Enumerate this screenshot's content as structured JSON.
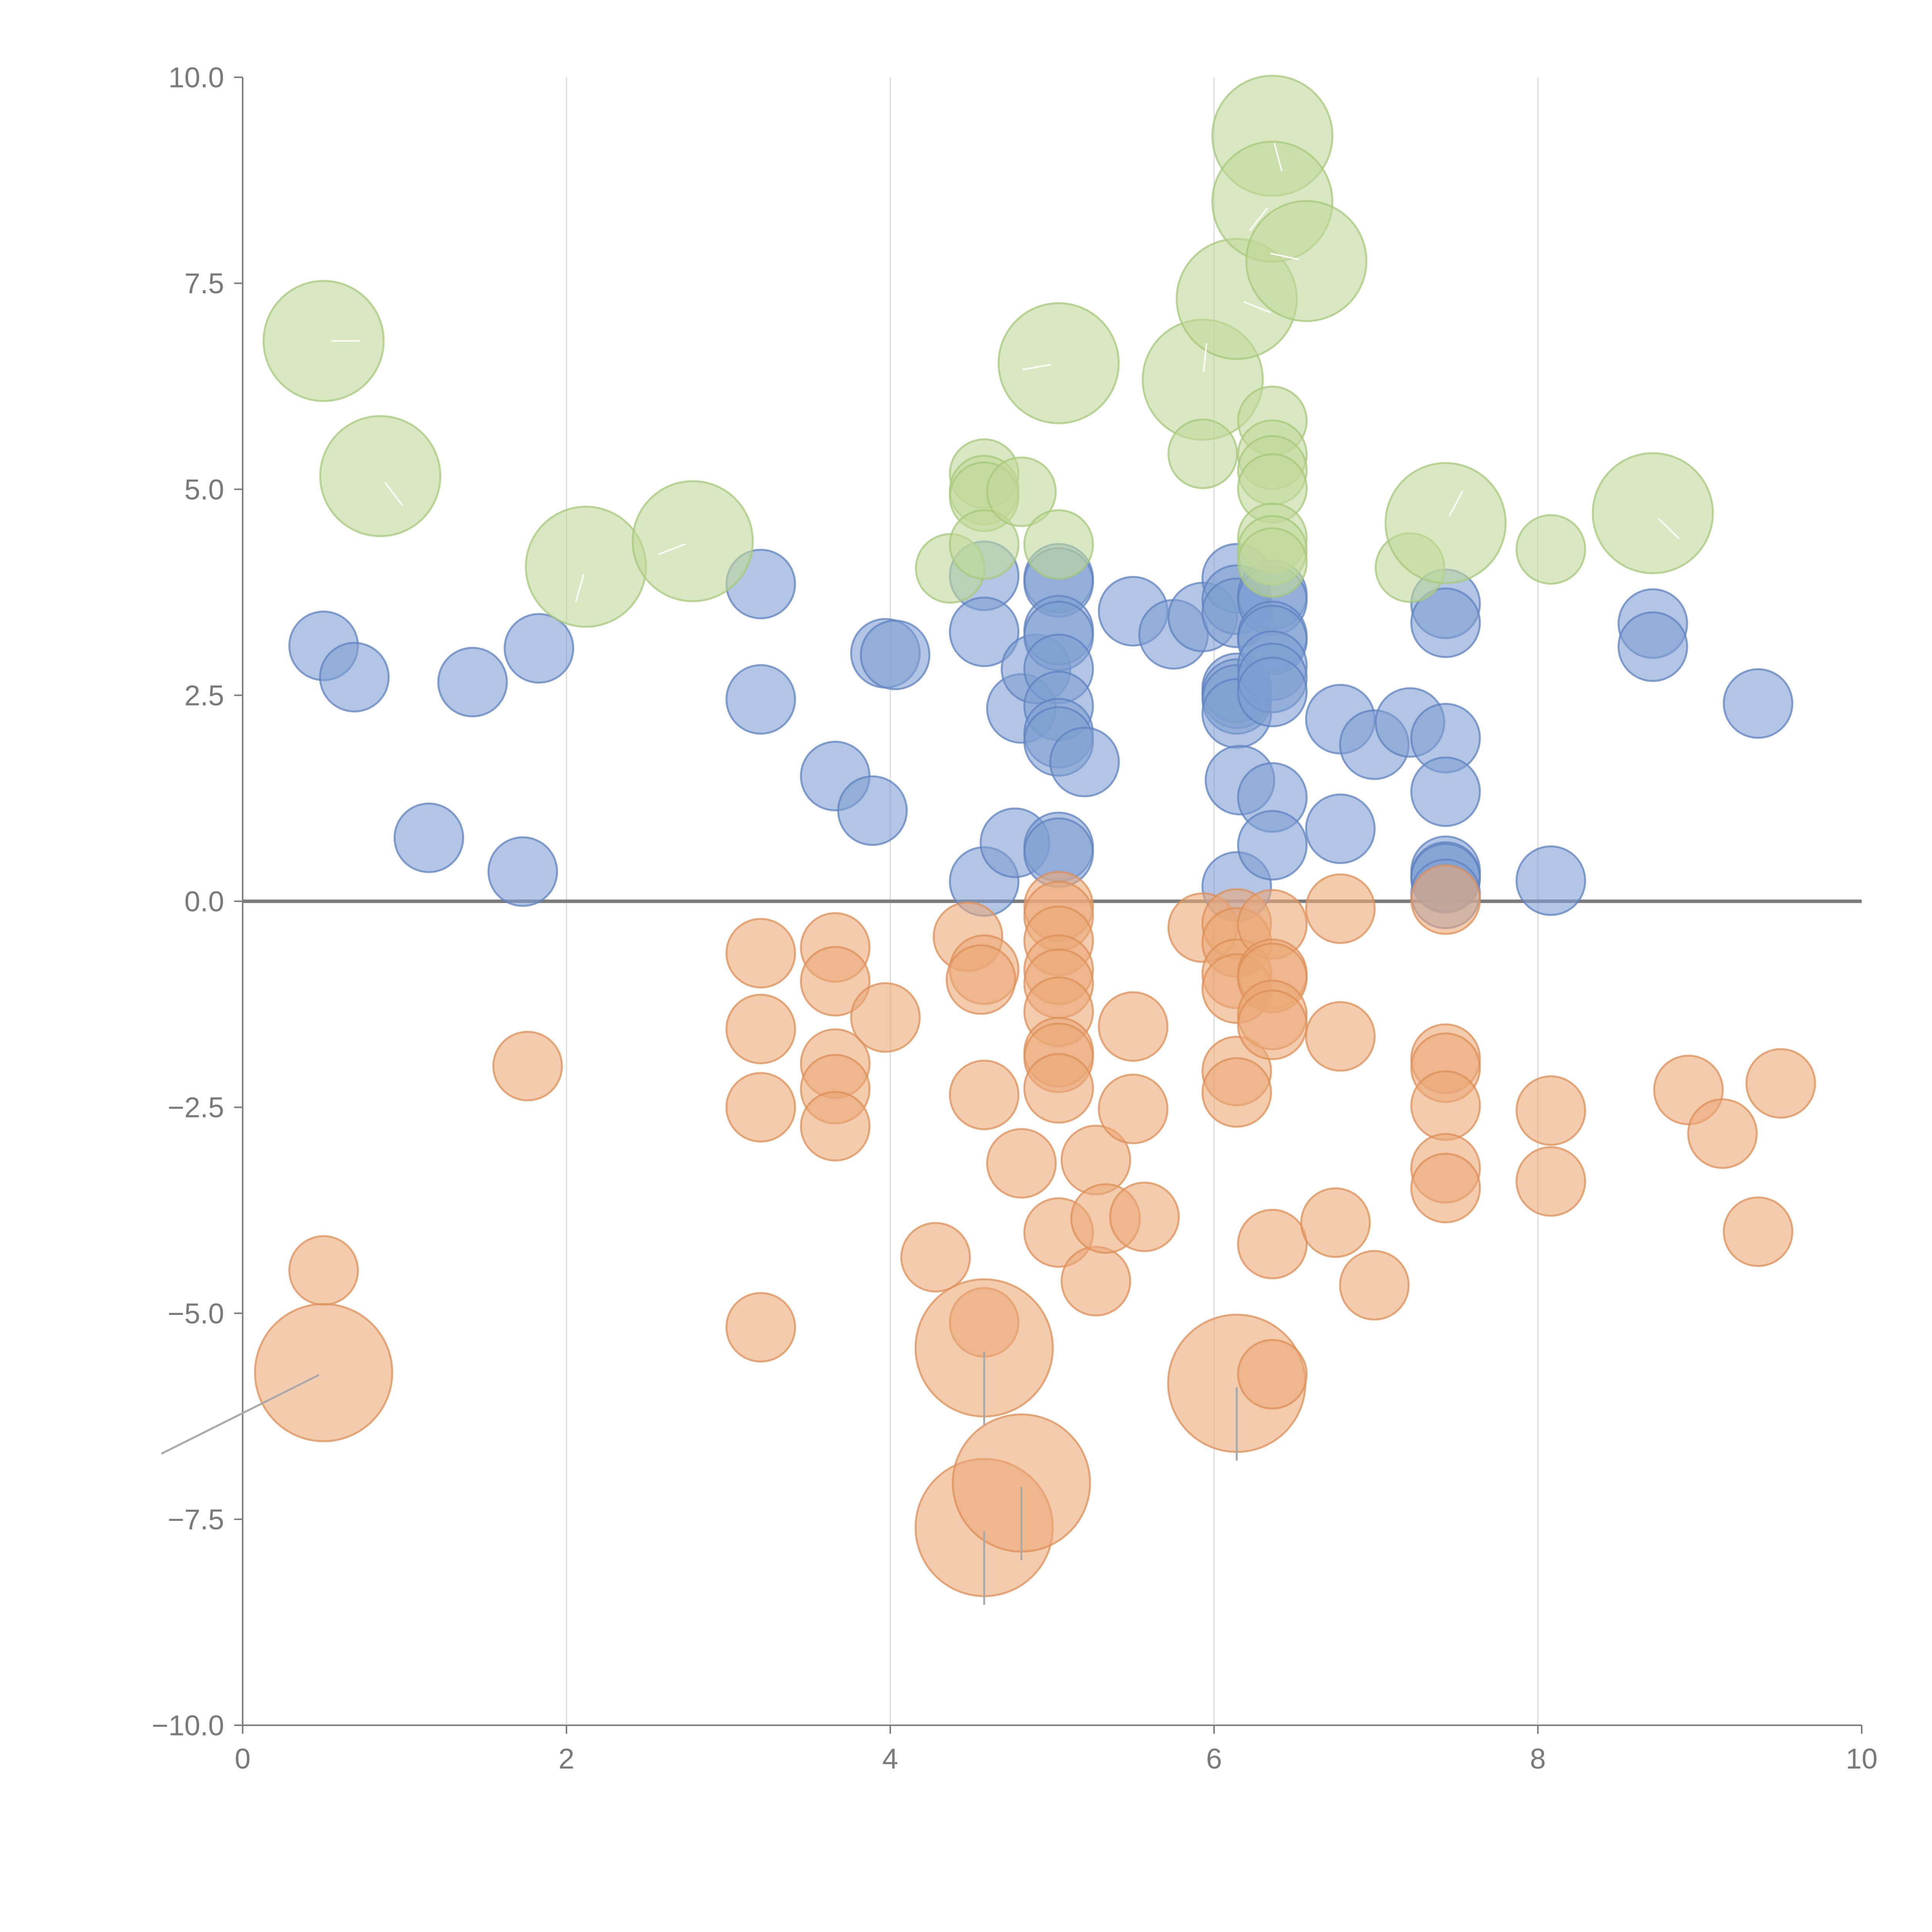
{
  "chart_data": {
    "type": "scatter",
    "subtype": "bubble",
    "title": "",
    "xlabel": "",
    "ylabel": "",
    "xlim": [
      0,
      10
    ],
    "ylim": [
      -10,
      10
    ],
    "x_ticks": [
      0,
      2,
      4,
      6,
      8,
      10
    ],
    "y_ticks": [
      -10,
      -7.5,
      -5,
      -2.5,
      0,
      2.5,
      5,
      7.5,
      10
    ],
    "x_tick_labels": [
      "0",
      "2",
      "4",
      "6",
      "8",
      "10"
    ],
    "y_tick_labels": [
      "−10.0",
      "−7.5",
      "−5.0",
      "−2.5",
      "0.0",
      "2.5",
      "5.0",
      "7.5",
      "10.0"
    ],
    "grid": "vertical",
    "zero_line": true,
    "series": [
      {
        "name": "blue",
        "color": "#7f9fd2",
        "stroke": "#5f82c0",
        "points": [
          [
            0.5,
            3.1
          ],
          [
            0.69,
            2.72
          ],
          [
            1.15,
            0.77
          ],
          [
            1.42,
            2.66
          ],
          [
            1.73,
            0.36
          ],
          [
            1.83,
            3.07
          ],
          [
            3.2,
            3.85
          ],
          [
            3.2,
            2.45
          ],
          [
            3.66,
            1.52
          ],
          [
            3.89,
            1.1
          ],
          [
            3.97,
            3.01
          ],
          [
            4.03,
            2.99
          ],
          [
            4.58,
            3.95
          ],
          [
            4.58,
            3.27
          ],
          [
            4.58,
            0.24
          ],
          [
            4.77,
            0.71
          ],
          [
            4.81,
            2.34
          ],
          [
            4.9,
            2.82
          ],
          [
            5.04,
            3.92
          ],
          [
            5.04,
            3.87
          ],
          [
            5.04,
            3.29
          ],
          [
            5.04,
            3.22
          ],
          [
            5.04,
            2.82
          ],
          [
            5.04,
            2.37
          ],
          [
            5.04,
            2.04
          ],
          [
            5.04,
            1.94
          ],
          [
            5.04,
            0.66
          ],
          [
            5.04,
            0.59
          ],
          [
            5.2,
            1.69
          ],
          [
            5.5,
            3.52
          ],
          [
            5.75,
            3.24
          ],
          [
            5.93,
            3.45
          ],
          [
            6.14,
            3.92
          ],
          [
            6.14,
            3.66
          ],
          [
            6.14,
            3.5
          ],
          [
            6.14,
            2.59
          ],
          [
            6.14,
            2.52
          ],
          [
            6.14,
            2.45
          ],
          [
            6.14,
            2.28
          ],
          [
            6.16,
            1.47
          ],
          [
            6.14,
            0.18
          ],
          [
            6.36,
            3.72
          ],
          [
            6.36,
            3.65
          ],
          [
            6.36,
            3.22
          ],
          [
            6.36,
            3.17
          ],
          [
            6.36,
            2.86
          ],
          [
            6.36,
            2.71
          ],
          [
            6.36,
            2.54
          ],
          [
            6.36,
            1.26
          ],
          [
            6.36,
            0.68
          ],
          [
            6.78,
            2.21
          ],
          [
            6.78,
            0.88
          ],
          [
            6.99,
            1.9
          ],
          [
            7.21,
            2.17
          ],
          [
            7.43,
            3.61
          ],
          [
            7.43,
            3.38
          ],
          [
            7.43,
            1.98
          ],
          [
            7.43,
            1.33
          ],
          [
            7.43,
            0.37
          ],
          [
            7.43,
            0.3
          ],
          [
            7.43,
            0.28
          ],
          [
            7.43,
            0.09
          ],
          [
            8.08,
            0.25
          ],
          [
            8.71,
            3.37
          ],
          [
            8.71,
            3.09
          ],
          [
            9.36,
            2.4
          ]
        ],
        "sizes": [
          24,
          24,
          24,
          24,
          24,
          24,
          24,
          24,
          24,
          24,
          24,
          24,
          24,
          24,
          24,
          24,
          24,
          24,
          24,
          24,
          24,
          24,
          24,
          24,
          24,
          24,
          24,
          24,
          24,
          24,
          24,
          24,
          24,
          24,
          24,
          24,
          24,
          24,
          24,
          24,
          24,
          24,
          24,
          24,
          24,
          24,
          24,
          24,
          24,
          24,
          24,
          24,
          24,
          24,
          24,
          24,
          24,
          24,
          24,
          24,
          24,
          24,
          24,
          24,
          24,
          24
        ]
      },
      {
        "name": "orange",
        "color": "#eba877",
        "stroke": "#dd8f57",
        "points": [
          [
            0.5,
            -4.48
          ],
          [
            0.5,
            -5.72
          ],
          [
            1.76,
            -2
          ],
          [
            3.2,
            -0.63
          ],
          [
            3.2,
            -1.55
          ],
          [
            3.2,
            -2.5
          ],
          [
            3.2,
            -5.17
          ],
          [
            3.66,
            -0.56
          ],
          [
            3.66,
            -0.97
          ],
          [
            3.66,
            -1.97
          ],
          [
            3.66,
            -2.28
          ],
          [
            3.66,
            -2.73
          ],
          [
            3.97,
            -1.41
          ],
          [
            4.28,
            -4.32
          ],
          [
            4.48,
            -0.43
          ],
          [
            4.58,
            -0.83
          ],
          [
            4.56,
            -0.95
          ],
          [
            4.58,
            -2.35
          ],
          [
            4.58,
            -5.11
          ],
          [
            4.58,
            -5.42
          ],
          [
            4.58,
            -7.6
          ],
          [
            4.81,
            -3.18
          ],
          [
            4.81,
            -7.06
          ],
          [
            5.04,
            -0.06
          ],
          [
            5.04,
            -0.18
          ],
          [
            5.04,
            -0.48
          ],
          [
            5.04,
            -0.83
          ],
          [
            5.04,
            -1
          ],
          [
            5.04,
            -1.34
          ],
          [
            5.04,
            -1.83
          ],
          [
            5.04,
            -1.9
          ],
          [
            5.04,
            -2.27
          ],
          [
            5.04,
            -4.02
          ],
          [
            5.27,
            -3.14
          ],
          [
            5.27,
            -4.61
          ],
          [
            5.33,
            -3.85
          ],
          [
            5.5,
            -1.52
          ],
          [
            5.5,
            -2.52
          ],
          [
            5.57,
            -3.83
          ],
          [
            5.93,
            -0.32
          ],
          [
            6.14,
            -0.27
          ],
          [
            6.14,
            -0.5
          ],
          [
            6.14,
            -0.88
          ],
          [
            6.14,
            -1.06
          ],
          [
            6.14,
            -2.06
          ],
          [
            6.14,
            -2.32
          ],
          [
            6.14,
            -5.85
          ],
          [
            6.36,
            -0.28
          ],
          [
            6.36,
            -0.88
          ],
          [
            6.36,
            -0.93
          ],
          [
            6.36,
            -1.38
          ],
          [
            6.36,
            -1.5
          ],
          [
            6.36,
            -4.16
          ],
          [
            6.36,
            -5.74
          ],
          [
            6.78,
            -0.09
          ],
          [
            6.78,
            -1.64
          ],
          [
            6.75,
            -3.9
          ],
          [
            6.99,
            -4.66
          ],
          [
            7.43,
            0.02
          ],
          [
            7.43,
            -1.91
          ],
          [
            7.43,
            -2.02
          ],
          [
            7.43,
            -2.48
          ],
          [
            7.43,
            -3.24
          ],
          [
            7.43,
            -3.48
          ],
          [
            8.08,
            -2.54
          ],
          [
            8.08,
            -3.4
          ],
          [
            8.93,
            -2.29
          ],
          [
            9.14,
            -2.82
          ],
          [
            9.36,
            -4.01
          ],
          [
            9.5,
            -2.21
          ]
        ],
        "sizes": [
          24,
          48,
          24,
          24,
          24,
          24,
          24,
          24,
          24,
          24,
          24,
          24,
          24,
          24,
          24,
          24,
          24,
          24,
          24,
          48,
          48,
          24,
          48,
          24,
          24,
          24,
          24,
          24,
          24,
          24,
          24,
          24,
          24,
          24,
          24,
          24,
          24,
          24,
          24,
          24,
          24,
          24,
          24,
          24,
          24,
          24,
          48,
          24,
          24,
          24,
          24,
          24,
          24,
          24,
          24,
          24,
          24,
          24,
          24,
          24,
          24,
          24,
          24,
          24,
          24,
          24,
          24,
          24,
          24,
          24
        ]
      },
      {
        "name": "green",
        "color": "#bfd89a",
        "stroke": "#a6c87a",
        "points": [
          [
            0.5,
            6.8
          ],
          [
            0.85,
            5.16
          ],
          [
            2.12,
            4.06
          ],
          [
            2.78,
            4.37
          ],
          [
            4.37,
            4.04
          ],
          [
            4.58,
            5.19
          ],
          [
            4.58,
            4.99
          ],
          [
            4.58,
            4.91
          ],
          [
            4.58,
            4.33
          ],
          [
            4.81,
            4.97
          ],
          [
            5.04,
            6.53
          ],
          [
            5.04,
            4.33
          ],
          [
            5.93,
            6.33
          ],
          [
            5.93,
            5.43
          ],
          [
            6.14,
            7.31
          ],
          [
            6.36,
            9.29
          ],
          [
            6.36,
            8.49
          ],
          [
            6.36,
            5.83
          ],
          [
            6.36,
            5.42
          ],
          [
            6.36,
            5.23
          ],
          [
            6.36,
            5.01
          ],
          [
            6.36,
            4.41
          ],
          [
            6.36,
            4.26
          ],
          [
            6.36,
            4.11
          ],
          [
            6.57,
            7.77
          ],
          [
            7.21,
            4.05
          ],
          [
            7.43,
            4.59
          ],
          [
            8.08,
            4.27
          ],
          [
            8.71,
            4.71
          ]
        ],
        "sizes": [
          42,
          42,
          42,
          42,
          24,
          24,
          24,
          24,
          24,
          24,
          42,
          24,
          42,
          24,
          42,
          42,
          42,
          24,
          24,
          24,
          24,
          24,
          24,
          24,
          42,
          24,
          42,
          24,
          42
        ]
      }
    ]
  }
}
